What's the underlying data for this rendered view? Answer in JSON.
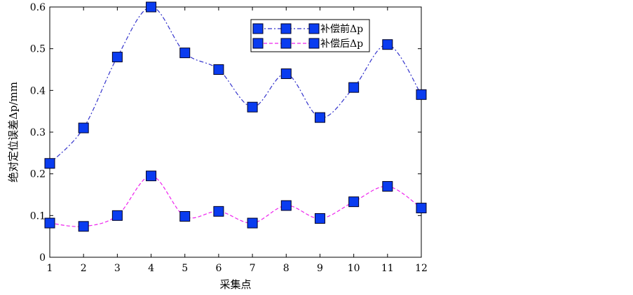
{
  "chart_data": {
    "type": "line",
    "xlabel": "采集点",
    "ylabel": "绝对定位误差Δp/mm",
    "xlim": [
      1,
      12
    ],
    "ylim": [
      0,
      0.6
    ],
    "xticks": [
      1,
      2,
      3,
      4,
      5,
      6,
      7,
      8,
      9,
      10,
      11,
      12
    ],
    "yticks": [
      0,
      0.1,
      0.2,
      0.3,
      0.4,
      0.5,
      0.6
    ],
    "x": [
      1,
      2,
      3,
      4,
      5,
      6,
      7,
      8,
      9,
      10,
      11,
      12
    ],
    "grid": false,
    "legend_position": "top-right",
    "series": [
      {
        "name": "补偿前Δp",
        "values": [
          0.225,
          0.31,
          0.48,
          0.6,
          0.49,
          0.45,
          0.36,
          0.44,
          0.335,
          0.407,
          0.51,
          0.39
        ],
        "line_color": "#3333cc",
        "line_style": "dash-dot",
        "marker": "square",
        "marker_color": "#0a3cf0"
      },
      {
        "name": "补偿后Δp",
        "values": [
          0.082,
          0.074,
          0.1,
          0.195,
          0.098,
          0.11,
          0.082,
          0.124,
          0.093,
          0.133,
          0.17,
          0.118
        ],
        "line_color": "#ee22ee",
        "line_style": "dashed",
        "marker": "square",
        "marker_color": "#0a3cf0"
      }
    ]
  }
}
